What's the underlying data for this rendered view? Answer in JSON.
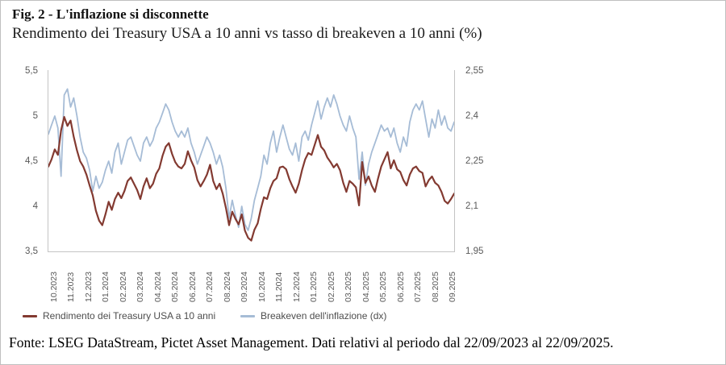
{
  "page": {
    "title": "Fig. 2 - L'inflazione si disconnette",
    "subtitle": "Rendimento dei Treasury USA a 10 anni vs tasso di breakeven a 10 anni (%)",
    "source_note": "Fonte: LSEG DataStream, Pictet Asset Management. Dati relativi al periodo dal 22/09/2023 al 22/09/2025."
  },
  "chart_data": {
    "type": "line",
    "title": "Rendimento dei Treasury USA a 10 anni vs tasso di breakeven a 10 anni (%)",
    "grid": false,
    "legend_position": "bottom",
    "x_labels": [
      "10.2023",
      "11.2023",
      "12.2023",
      "01.2024",
      "02.2024",
      "03.2024",
      "04.2024",
      "05.2024",
      "06.2024",
      "07.2024",
      "08.2024",
      "09.2024",
      "10.2024",
      "11.2024",
      "12.2024",
      "01.2025",
      "02.2025",
      "03.2025",
      "04.2025",
      "05.2025",
      "06.2025",
      "07.2025",
      "08.2025",
      "09.2025"
    ],
    "left_axis": {
      "ticks": [
        "5,5",
        "5",
        "4,5",
        "4",
        "3,5"
      ],
      "range": [
        3.5,
        5.5
      ]
    },
    "right_axis": {
      "ticks": [
        "2,55",
        "2,4",
        "2,25",
        "2,1",
        "1,95"
      ],
      "range": [
        1.95,
        2.55
      ]
    },
    "series": [
      {
        "name": "Rendimento dei Treasury USA a 10 anni",
        "axis": "left",
        "color": "#833a31",
        "values": [
          4.44,
          4.52,
          4.63,
          4.57,
          4.84,
          4.99,
          4.89,
          4.95,
          4.77,
          4.62,
          4.5,
          4.44,
          4.35,
          4.23,
          4.12,
          3.95,
          3.84,
          3.79,
          3.91,
          4.05,
          3.96,
          4.08,
          4.15,
          4.09,
          4.17,
          4.28,
          4.32,
          4.25,
          4.18,
          4.08,
          4.22,
          4.31,
          4.2,
          4.25,
          4.36,
          4.42,
          4.56,
          4.66,
          4.7,
          4.58,
          4.49,
          4.44,
          4.42,
          4.47,
          4.61,
          4.51,
          4.43,
          4.29,
          4.22,
          4.28,
          4.35,
          4.46,
          4.28,
          4.19,
          4.25,
          4.14,
          3.98,
          3.79,
          3.94,
          3.86,
          3.8,
          3.91,
          3.73,
          3.65,
          3.62,
          3.74,
          3.81,
          3.97,
          4.1,
          4.08,
          4.2,
          4.28,
          4.31,
          4.43,
          4.44,
          4.41,
          4.3,
          4.22,
          4.15,
          4.25,
          4.4,
          4.52,
          4.59,
          4.57,
          4.68,
          4.79,
          4.66,
          4.62,
          4.54,
          4.49,
          4.43,
          4.47,
          4.4,
          4.26,
          4.16,
          4.28,
          4.25,
          4.21,
          4.01,
          4.49,
          4.26,
          4.33,
          4.23,
          4.16,
          4.31,
          4.44,
          4.52,
          4.6,
          4.42,
          4.51,
          4.41,
          4.38,
          4.29,
          4.23,
          4.35,
          4.42,
          4.44,
          4.39,
          4.37,
          4.22,
          4.29,
          4.33,
          4.26,
          4.23,
          4.16,
          4.06,
          4.03,
          4.08,
          4.14
        ]
      },
      {
        "name": "Breakeven dell'inflazione (dx)",
        "axis": "right",
        "color": "#a6bcd6",
        "values": [
          2.34,
          2.37,
          2.4,
          2.36,
          2.2,
          2.47,
          2.49,
          2.43,
          2.46,
          2.4,
          2.33,
          2.28,
          2.26,
          2.22,
          2.15,
          2.2,
          2.16,
          2.18,
          2.22,
          2.25,
          2.21,
          2.28,
          2.31,
          2.24,
          2.28,
          2.32,
          2.33,
          2.3,
          2.27,
          2.25,
          2.31,
          2.33,
          2.3,
          2.32,
          2.36,
          2.38,
          2.41,
          2.44,
          2.42,
          2.38,
          2.35,
          2.33,
          2.35,
          2.33,
          2.36,
          2.31,
          2.28,
          2.24,
          2.27,
          2.3,
          2.33,
          2.31,
          2.28,
          2.24,
          2.27,
          2.23,
          2.16,
          2.06,
          2.12,
          2.07,
          2.03,
          2.1,
          2.04,
          2.02,
          2.06,
          2.12,
          2.16,
          2.2,
          2.27,
          2.24,
          2.31,
          2.35,
          2.28,
          2.33,
          2.37,
          2.33,
          2.29,
          2.27,
          2.31,
          2.25,
          2.33,
          2.35,
          2.32,
          2.37,
          2.41,
          2.45,
          2.39,
          2.43,
          2.46,
          2.43,
          2.47,
          2.44,
          2.4,
          2.37,
          2.35,
          2.4,
          2.36,
          2.33,
          2.19,
          2.28,
          2.17,
          2.24,
          2.28,
          2.31,
          2.34,
          2.37,
          2.35,
          2.36,
          2.33,
          2.36,
          2.31,
          2.28,
          2.33,
          2.3,
          2.38,
          2.42,
          2.44,
          2.42,
          2.45,
          2.39,
          2.33,
          2.39,
          2.36,
          2.42,
          2.37,
          2.4,
          2.36,
          2.35,
          2.38
        ]
      }
    ]
  },
  "colors": {
    "tick_text": "#595959",
    "legend_text": "#4d4d4d",
    "axis_line": "#c4c4c4",
    "frame": "#bfbfbf",
    "background": "#ffffff"
  }
}
